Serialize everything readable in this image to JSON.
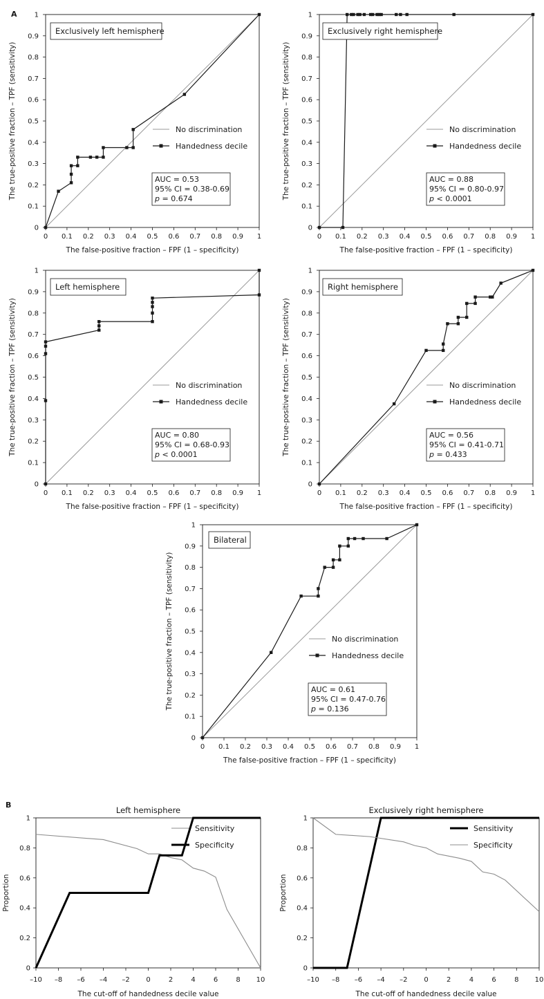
{
  "panel_labels": {
    "a": "A",
    "b": "B"
  },
  "chart_data": [
    {
      "type": "line",
      "subtype": "roc",
      "title": "Exclusively left hemisphere",
      "xlabel": "The false-positive fraction – FPF (1 – specificity)",
      "ylabel": "The true-positive fraction – TPF (sensitivity)",
      "xlim": [
        0,
        1
      ],
      "ylim": [
        0,
        1
      ],
      "xticks": [
        "0",
        "0.1",
        "0.2",
        "0.3",
        "0.4",
        "0.5",
        "0.6",
        "0.7",
        "0.8",
        "0.9",
        "1"
      ],
      "yticks": [
        "0",
        "0.1",
        "0.2",
        "0.3",
        "0.4",
        "0.5",
        "0.6",
        "0.7",
        "0.8",
        "0.9",
        "1"
      ],
      "series": [
        {
          "name": "No discrimination",
          "points": [
            [
              0,
              0
            ],
            [
              1,
              1
            ]
          ]
        },
        {
          "name": "Handedness decile",
          "points": [
            [
              0,
              0
            ],
            [
              0.06,
              0.17
            ],
            [
              0.12,
              0.21
            ],
            [
              0.12,
              0.25
            ],
            [
              0.12,
              0.29
            ],
            [
              0.15,
              0.29
            ],
            [
              0.15,
              0.33
            ],
            [
              0.21,
              0.33
            ],
            [
              0.24,
              0.33
            ],
            [
              0.27,
              0.33
            ],
            [
              0.27,
              0.375
            ],
            [
              0.38,
              0.375
            ],
            [
              0.41,
              0.375
            ],
            [
              0.41,
              0.46
            ],
            [
              0.65,
              0.625
            ],
            [
              1,
              1
            ]
          ]
        }
      ],
      "stats": {
        "auc": "AUC = 0.53",
        "ci": "95% CI = 0.38-0.69",
        "p_label": "p",
        "p_value": " = 0.674"
      }
    },
    {
      "type": "line",
      "subtype": "roc",
      "title": "Exclusively right hemisphere",
      "xlabel": "The false-positive fraction – FPF (1 – specificity)",
      "ylabel": "The true-positive fraction – TPF (sensitivity)",
      "xlim": [
        0,
        1
      ],
      "ylim": [
        0,
        1
      ],
      "xticks": [
        "0",
        "0.1",
        "0.2",
        "0.3",
        "0.4",
        "0.5",
        "0.6",
        "0.7",
        "0.8",
        "0.9",
        "1"
      ],
      "yticks": [
        "0",
        "0.1",
        "0.2",
        "0.3",
        "0.4",
        "0.5",
        "0.6",
        "0.7",
        "0.8",
        "0.9",
        "1"
      ],
      "series": [
        {
          "name": "No discrimination",
          "points": [
            [
              0,
              0
            ],
            [
              1,
              1
            ]
          ]
        },
        {
          "name": "Handedness decile",
          "points": [
            [
              0,
              0
            ],
            [
              0.11,
              0
            ],
            [
              0.13,
              1
            ],
            [
              0.15,
              1
            ],
            [
              0.16,
              1
            ],
            [
              0.18,
              1
            ],
            [
              0.19,
              1
            ],
            [
              0.21,
              1
            ],
            [
              0.24,
              1
            ],
            [
              0.25,
              1
            ],
            [
              0.27,
              1
            ],
            [
              0.28,
              1
            ],
            [
              0.29,
              1
            ],
            [
              0.36,
              1
            ],
            [
              0.38,
              1
            ],
            [
              0.41,
              1
            ],
            [
              0.63,
              1
            ],
            [
              1,
              1
            ]
          ]
        }
      ],
      "stats": {
        "auc": "AUC = 0.88",
        "ci": "95% CI = 0.80-0.97",
        "p_label": "p",
        "p_value": " < 0.0001"
      }
    },
    {
      "type": "line",
      "subtype": "roc",
      "title": "Left hemisphere",
      "xlabel": "The false-positive fraction – FPF (1 – specificity)",
      "ylabel": "The true-positive fraction – TPF (sensitivity)",
      "xlim": [
        0,
        1
      ],
      "ylim": [
        0,
        1
      ],
      "xticks": [
        "0",
        "0.1",
        "0.2",
        "0.3",
        "0.4",
        "0.5",
        "0.6",
        "0.7",
        "0.8",
        "0.9",
        "1"
      ],
      "yticks": [
        "0",
        "0.1",
        "0.2",
        "0.3",
        "0.4",
        "0.5",
        "0.6",
        "0.7",
        "0.8",
        "0.9",
        "1"
      ],
      "series": [
        {
          "name": "No discrimination",
          "points": [
            [
              0,
              0
            ],
            [
              1,
              1
            ]
          ]
        },
        {
          "name": "Handedness decile",
          "points": [
            [
              0,
              0
            ],
            [
              0,
              0.39
            ],
            [
              0,
              0.61
            ],
            [
              0,
              0.645
            ],
            [
              0,
              0.665
            ],
            [
              0.25,
              0.72
            ],
            [
              0.25,
              0.74
            ],
            [
              0.25,
              0.76
            ],
            [
              0.5,
              0.76
            ],
            [
              0.5,
              0.8
            ],
            [
              0.5,
              0.83
            ],
            [
              0.5,
              0.85
            ],
            [
              0.5,
              0.87
            ],
            [
              1,
              0.885
            ],
            [
              1,
              1
            ]
          ]
        }
      ],
      "stats": {
        "auc": "AUC = 0.80",
        "ci": "95% CI = 0.68-0.93",
        "p_label": "p",
        "p_value": " < 0.0001"
      }
    },
    {
      "type": "line",
      "subtype": "roc",
      "title": "Right hemisphere",
      "xlabel": "The false-positive fraction – FPF (1 – specificity)",
      "ylabel": "The true-positive fraction – TPF (sensitivity)",
      "xlim": [
        0,
        1
      ],
      "ylim": [
        0,
        1
      ],
      "xticks": [
        "0",
        "0.1",
        "0.2",
        "0.3",
        "0.4",
        "0.5",
        "0.6",
        "0.7",
        "0.8",
        "0.9",
        "1"
      ],
      "yticks": [
        "0",
        "0.1",
        "0.2",
        "0.3",
        "0.4",
        "0.5",
        "0.6",
        "0.7",
        "0.8",
        "0.9",
        "1"
      ],
      "series": [
        {
          "name": "No discrimination",
          "points": [
            [
              0,
              0
            ],
            [
              1,
              1
            ]
          ]
        },
        {
          "name": "Handedness decile",
          "points": [
            [
              0,
              0
            ],
            [
              0.35,
              0.375
            ],
            [
              0.5,
              0.625
            ],
            [
              0.58,
              0.625
            ],
            [
              0.58,
              0.655
            ],
            [
              0.6,
              0.75
            ],
            [
              0.65,
              0.75
            ],
            [
              0.65,
              0.78
            ],
            [
              0.69,
              0.78
            ],
            [
              0.69,
              0.845
            ],
            [
              0.73,
              0.845
            ],
            [
              0.73,
              0.875
            ],
            [
              0.8,
              0.875
            ],
            [
              0.81,
              0.875
            ],
            [
              0.85,
              0.94
            ],
            [
              1,
              1
            ]
          ]
        }
      ],
      "stats": {
        "auc": "AUC = 0.56",
        "ci": "95% CI = 0.41-0.71",
        "p_label": "p",
        "p_value": " = 0.433"
      }
    },
    {
      "type": "line",
      "subtype": "roc",
      "title": "Bilateral",
      "xlabel": "The false-positive fraction – FPF (1 – specificity)",
      "ylabel": "The true-positive fraction – TPF (sensitivity)",
      "xlim": [
        0,
        1
      ],
      "ylim": [
        0,
        1
      ],
      "xticks": [
        "0",
        "0.1",
        "0.2",
        "0.3",
        "0.4",
        "0.5",
        "0.6",
        "0.7",
        "0.8",
        "0.9",
        "1"
      ],
      "yticks": [
        "0",
        "0.1",
        "0.2",
        "0.3",
        "0.4",
        "0.5",
        "0.6",
        "0.7",
        "0.8",
        "0.9",
        "1"
      ],
      "series": [
        {
          "name": "No discrimination",
          "points": [
            [
              0,
              0
            ],
            [
              1,
              1
            ]
          ]
        },
        {
          "name": "Handedness decile",
          "points": [
            [
              0,
              0
            ],
            [
              0.32,
              0.4
            ],
            [
              0.46,
              0.665
            ],
            [
              0.54,
              0.665
            ],
            [
              0.54,
              0.7
            ],
            [
              0.57,
              0.8
            ],
            [
              0.61,
              0.8
            ],
            [
              0.61,
              0.835
            ],
            [
              0.64,
              0.835
            ],
            [
              0.64,
              0.9
            ],
            [
              0.68,
              0.9
            ],
            [
              0.68,
              0.935
            ],
            [
              0.71,
              0.935
            ],
            [
              0.75,
              0.935
            ],
            [
              0.86,
              0.935
            ],
            [
              1,
              1
            ]
          ]
        }
      ],
      "stats": {
        "auc": "AUC = 0.61",
        "ci": "95% CI = 0.47-0.76",
        "p_label": "p",
        "p_value": " = 0.136"
      }
    },
    {
      "type": "line",
      "title": "Left hemisphere",
      "xlabel": "The cut-off of handedness decile value",
      "ylabel": "Proportion",
      "xlim": [
        -10,
        10
      ],
      "ylim": [
        0,
        1
      ],
      "xticks": [
        "–10",
        "–8",
        "–6",
        "–4",
        "–2",
        "0",
        "2",
        "4",
        "6",
        "8",
        "10"
      ],
      "yticks": [
        "0",
        "0.2",
        "0.4",
        "0.6",
        "0.8",
        "1"
      ],
      "series": [
        {
          "name": "Sensitivity",
          "weight": "thin",
          "points": [
            [
              -10,
              0.89
            ],
            [
              -4,
              0.855
            ],
            [
              -1,
              0.795
            ],
            [
              0,
              0.76
            ],
            [
              1,
              0.76
            ],
            [
              2,
              0.735
            ],
            [
              3,
              0.72
            ],
            [
              4,
              0.665
            ],
            [
              5,
              0.645
            ],
            [
              6,
              0.605
            ],
            [
              7,
              0.39
            ],
            [
              10,
              0
            ]
          ]
        },
        {
          "name": "Specificity",
          "weight": "thick",
          "points": [
            [
              -10,
              0
            ],
            [
              -7,
              0.5
            ],
            [
              0,
              0.5
            ],
            [
              1,
              0.75
            ],
            [
              3,
              0.75
            ],
            [
              4,
              1
            ],
            [
              10,
              1
            ]
          ]
        }
      ]
    },
    {
      "type": "line",
      "title": "Exclusively right hemisphere",
      "xlabel": "The cut-off of handedness decile value",
      "ylabel": "Proportion",
      "xlim": [
        -10,
        10
      ],
      "ylim": [
        0,
        1
      ],
      "xticks": [
        "–10",
        "–8",
        "–6",
        "–4",
        "–2",
        "0",
        "2",
        "4",
        "6",
        "8",
        "10"
      ],
      "yticks": [
        "0",
        "0.2",
        "0.4",
        "0.6",
        "0.8",
        "1"
      ],
      "series": [
        {
          "name": "Sensitivity",
          "weight": "thick",
          "points": [
            [
              -10,
              0
            ],
            [
              -7,
              0
            ],
            [
              -4,
              1
            ],
            [
              10,
              1
            ]
          ]
        },
        {
          "name": "Specificity",
          "weight": "thin",
          "points": [
            [
              -10,
              1
            ],
            [
              -8,
              0.89
            ],
            [
              -5,
              0.875
            ],
            [
              -2,
              0.84
            ],
            [
              -1,
              0.815
            ],
            [
              0,
              0.8
            ],
            [
              1,
              0.76
            ],
            [
              2,
              0.745
            ],
            [
              3,
              0.73
            ],
            [
              4,
              0.71
            ],
            [
              5,
              0.64
            ],
            [
              6,
              0.625
            ],
            [
              7,
              0.585
            ],
            [
              10,
              0.375
            ]
          ]
        }
      ]
    }
  ]
}
